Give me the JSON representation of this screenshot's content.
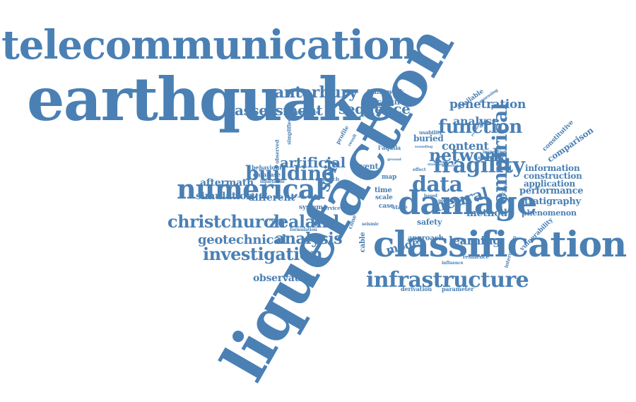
{
  "color": "#4a80b4",
  "words": [
    {
      "text": "liquefaction",
      "rot": -60
    },
    {
      "text": "earthquake",
      "rot": 0
    },
    {
      "text": "telecommunication",
      "rot": 0
    },
    {
      "text": "classification",
      "rot": 0
    },
    {
      "text": "damage",
      "rot": 0
    },
    {
      "text": "numerical",
      "rot": 0
    },
    {
      "text": "infrastructure",
      "rot": 0
    },
    {
      "text": "investigation",
      "rot": 0
    },
    {
      "text": "christchurch",
      "rot": 0
    },
    {
      "text": "zealand",
      "rot": 0
    },
    {
      "text": "building",
      "rot": 0
    },
    {
      "text": "data",
      "rot": 0
    },
    {
      "text": "fragility",
      "rot": 0
    },
    {
      "text": "network",
      "rot": 0
    },
    {
      "text": "empirical",
      "rot": -90
    },
    {
      "text": "function",
      "rot": 0
    },
    {
      "text": "canterbury",
      "rot": 0
    },
    {
      "text": "assessment",
      "rot": 0
    },
    {
      "text": "artificial",
      "rot": 0
    },
    {
      "text": "geotechnical",
      "rot": 0
    },
    {
      "text": "analysis",
      "rot": 0
    },
    {
      "text": "sequence",
      "rot": 0
    },
    {
      "text": "penetration",
      "rot": 0
    },
    {
      "text": "analyse",
      "rot": 0
    },
    {
      "text": "content",
      "rot": 0
    },
    {
      "text": "neural",
      "rot": -15
    },
    {
      "text": "soil",
      "rot": -70
    },
    {
      "text": "observation",
      "rot": 0
    },
    {
      "text": "simulation",
      "rot": 0
    },
    {
      "text": "different",
      "rot": 0
    },
    {
      "text": "aftermath",
      "rot": 0
    },
    {
      "text": "model",
      "rot": -15
    },
    {
      "text": "learning",
      "rot": 0
    },
    {
      "text": "method",
      "rot": 0
    },
    {
      "text": "stratigraphy",
      "rot": 0
    },
    {
      "text": "performance",
      "rot": 0
    },
    {
      "text": "application",
      "rot": 0
    },
    {
      "text": "construction",
      "rot": 0
    },
    {
      "text": "information",
      "rot": 0
    },
    {
      "text": "comparison",
      "rot": -35
    },
    {
      "text": "phenomenon",
      "rot": 0
    },
    {
      "text": "vulnerability",
      "rot": -45
    },
    {
      "text": "constitutive",
      "rot": -45
    },
    {
      "text": "procedure",
      "rot": 0
    },
    {
      "text": "framework",
      "rot": 0
    },
    {
      "text": "buried",
      "rot": 0
    },
    {
      "text": "event",
      "rot": 0
    },
    {
      "text": "study",
      "rot": 0
    },
    {
      "text": "safety",
      "rot": 0
    },
    {
      "text": "approach",
      "rot": 0
    },
    {
      "text": "cable",
      "rot": -90
    },
    {
      "text": "map",
      "rot": 0
    },
    {
      "text": "scale",
      "rot": 0
    },
    {
      "text": "time",
      "rot": 0
    },
    {
      "text": "case",
      "rot": 0
    },
    {
      "text": "state",
      "rot": 0
    },
    {
      "text": "cone",
      "rot": -70
    },
    {
      "text": "system",
      "rot": 0
    },
    {
      "text": "service",
      "rot": 0
    },
    {
      "text": "behaviour",
      "rot": 0
    },
    {
      "text": "database",
      "rot": 0
    },
    {
      "text": "research",
      "rot": 0
    },
    {
      "text": "liquefiable",
      "rot": 0
    },
    {
      "text": "simplified",
      "rot": -90
    },
    {
      "text": "observed",
      "rot": -90
    },
    {
      "text": "prediction",
      "rot": 0
    },
    {
      "text": "profile",
      "rot": -60
    },
    {
      "text": "result",
      "rot": -60
    },
    {
      "text": "l'aquila",
      "rot": 0
    },
    {
      "text": "usability",
      "rot": 0
    },
    {
      "text": "inspection",
      "rot": 0
    },
    {
      "text": "substantial",
      "rot": 0
    },
    {
      "text": "available",
      "rot": -35
    },
    {
      "text": "assessing",
      "rot": -35
    },
    {
      "text": "seismic",
      "rot": 0
    },
    {
      "text": "formulation",
      "rot": 0
    },
    {
      "text": "derivation",
      "rot": 0
    },
    {
      "text": "parameter",
      "rot": 0
    },
    {
      "text": "resilience",
      "rot": 0
    },
    {
      "text": "influence",
      "rot": 0
    },
    {
      "text": "interruption",
      "rot": -75
    },
    {
      "text": "plasticity",
      "rot": -75
    },
    {
      "text": "potential",
      "rot": 0
    },
    {
      "text": "based",
      "rot": 0
    },
    {
      "text": "effect",
      "rot": 0
    },
    {
      "text": "standard",
      "rot": 0
    },
    {
      "text": "material",
      "rot": 0
    },
    {
      "text": "ground",
      "rot": 0
    },
    {
      "text": "sounding",
      "rot": 0
    },
    {
      "text": "evaluation",
      "rot": -60
    },
    {
      "text": "advanced",
      "rot": 0
    }
  ]
}
